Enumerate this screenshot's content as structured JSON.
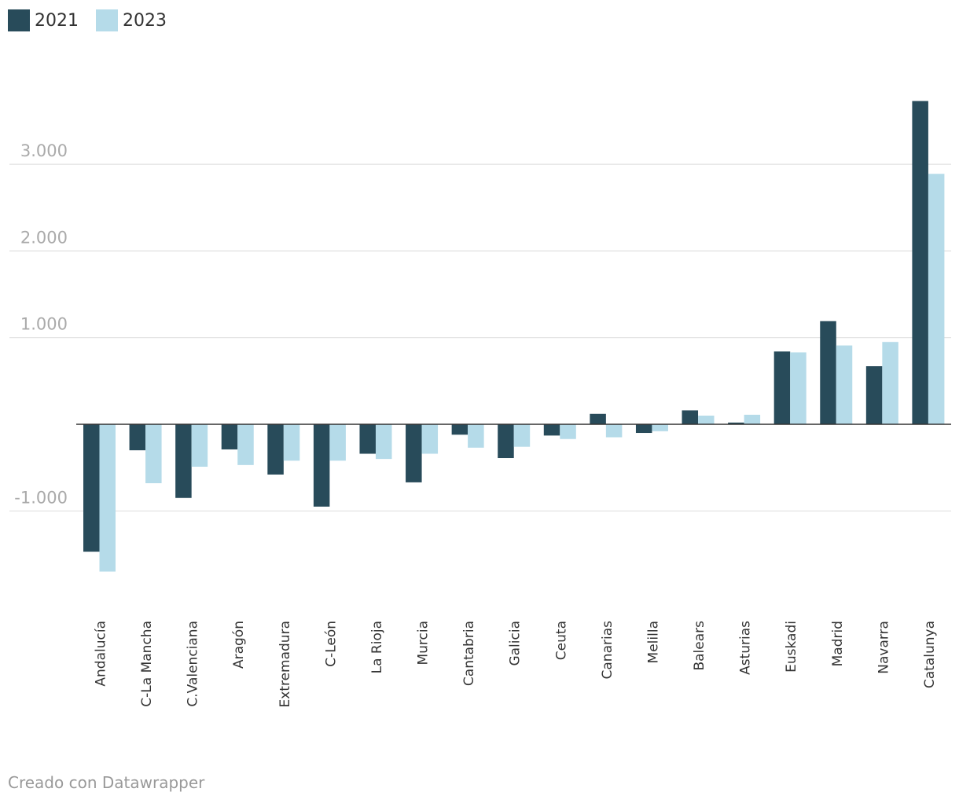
{
  "chart_data": {
    "type": "bar",
    "categories": [
      "Andalucía",
      "C-La Mancha",
      "C.Valenciana",
      "Aragón",
      "Extremadura",
      "C-León",
      "La Rioja",
      "Murcia",
      "Cantabria",
      "Galicia",
      "Ceuta",
      "Canarias",
      "Melilla",
      "Balears",
      "Asturias",
      "Euskadi",
      "Madrid",
      "Navarra",
      "Catalunya"
    ],
    "series": [
      {
        "name": "2021",
        "color": "#284b5a",
        "values": [
          -1470,
          -300,
          -850,
          -290,
          -580,
          -950,
          -340,
          -670,
          -120,
          -390,
          -130,
          120,
          -100,
          160,
          20,
          840,
          1190,
          670,
          3730
        ]
      },
      {
        "name": "2023",
        "color": "#b5dbe9",
        "values": [
          -1700,
          -680,
          -490,
          -470,
          -420,
          -420,
          -400,
          -340,
          -270,
          -260,
          -170,
          -150,
          -80,
          100,
          110,
          830,
          910,
          950,
          2890
        ]
      }
    ],
    "y_ticks": [
      3000,
      2000,
      1000,
      -1000
    ],
    "y_tick_labels": [
      "3.000",
      "2.000",
      "1.000",
      "-1.000"
    ],
    "ylim": [
      -2200,
      4100
    ],
    "title": "",
    "xlabel": "",
    "ylabel": "",
    "legend_position": "top-left",
    "grid": true
  },
  "legend": {
    "label_2021": "2021",
    "label_2023": "2023"
  },
  "footer": {
    "credit": "Creado con Datawrapper"
  },
  "colors": {
    "series_2021": "#284b5a",
    "series_2023": "#b5dbe9",
    "gridline": "#e0e0e0",
    "tick_label": "#aaaaaa",
    "category_label": "#333333"
  }
}
